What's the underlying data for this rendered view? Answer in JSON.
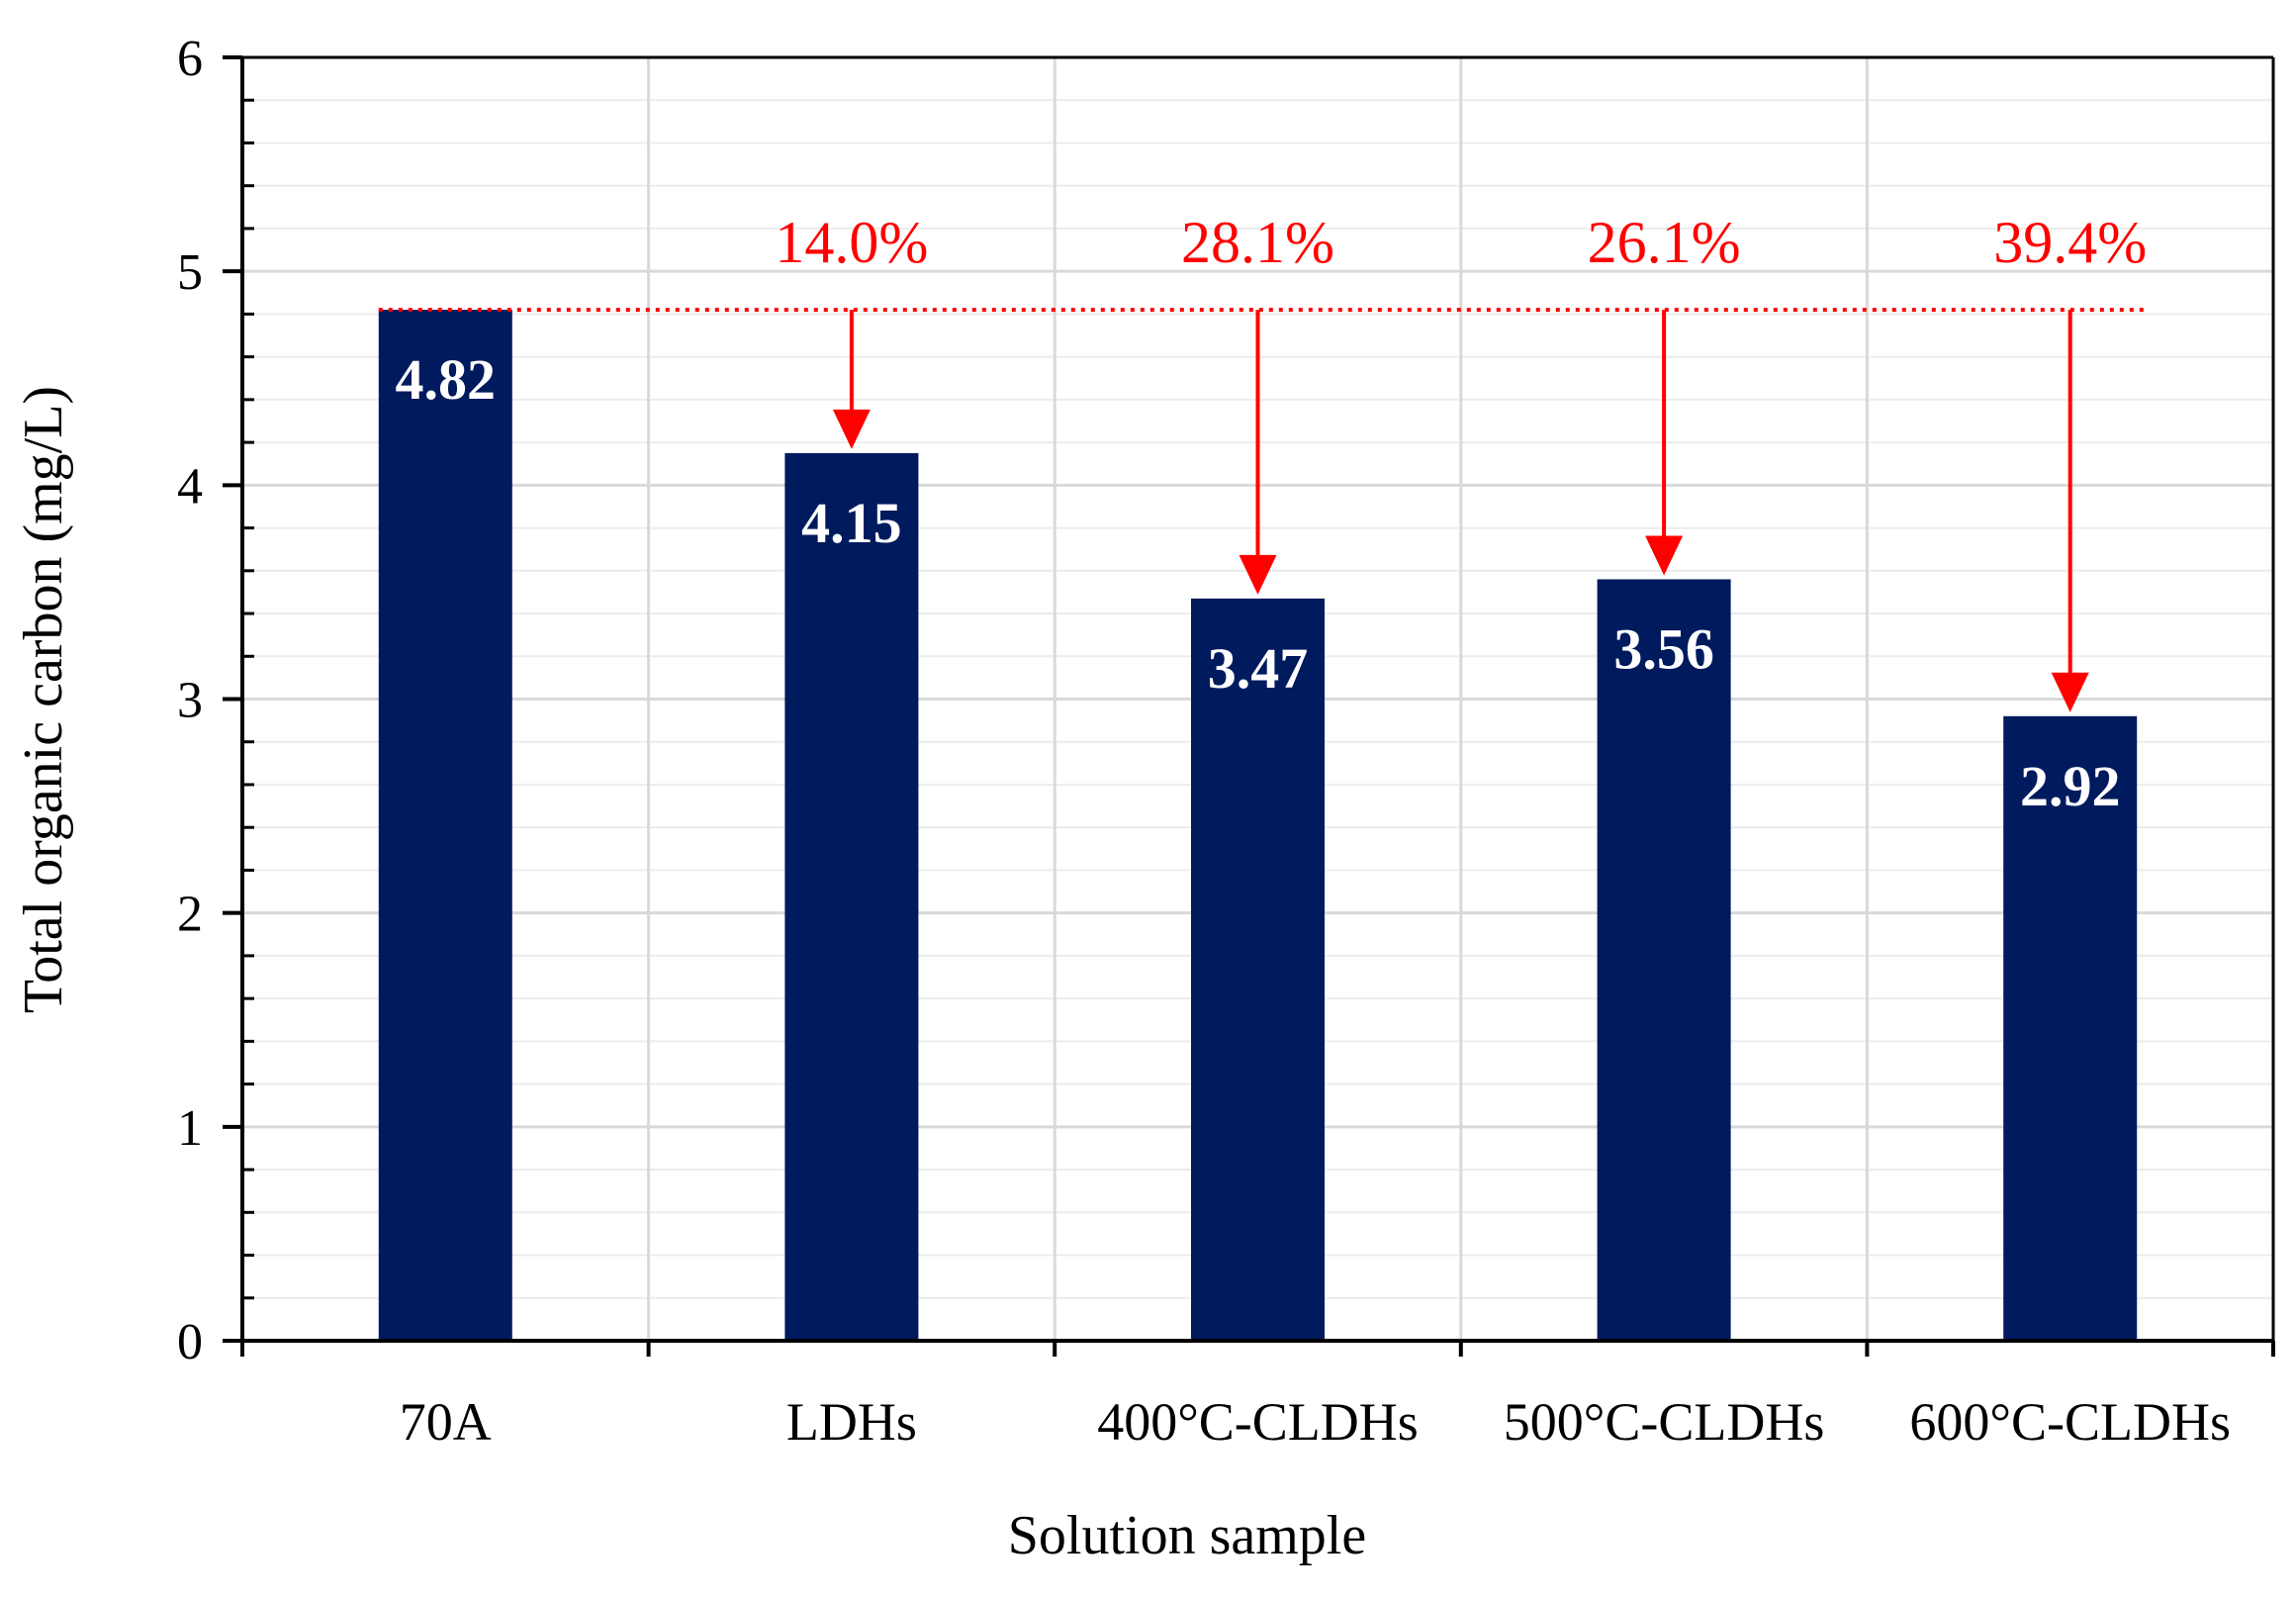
{
  "chart_data": {
    "type": "bar",
    "xlabel": "Solution sample",
    "ylabel": "Total organic carbon (mg/L)",
    "ylim": [
      0,
      6
    ],
    "y_ticks": [
      "0",
      "1",
      "2",
      "3",
      "4",
      "5",
      "6"
    ],
    "y_minor_step": 0.2,
    "grid": true,
    "categories": [
      "70A",
      "LDHs",
      "400°C-CLDHs",
      "500°C-CLDHs",
      "600°C-CLDHs"
    ],
    "values": [
      4.82,
      4.15,
      3.47,
      3.56,
      2.92
    ],
    "value_labels": [
      "4.82",
      "4.15",
      "3.47",
      "3.56",
      "2.92"
    ],
    "reference_line": {
      "value": 4.82,
      "style": "dotted",
      "color": "#ff0000"
    },
    "reductions": [
      {
        "category": "LDHs",
        "label": "14.0%"
      },
      {
        "category": "400°C-CLDHs",
        "label": "28.1%"
      },
      {
        "category": "500°C-CLDHs",
        "label": "26.1%"
      },
      {
        "category": "600°C-CLDHs",
        "label": "39.4%"
      }
    ],
    "colors": {
      "bar": "#001a5e",
      "annotation": "#ff0000",
      "grid": "#d9d9d9",
      "axis": "#000000"
    }
  }
}
